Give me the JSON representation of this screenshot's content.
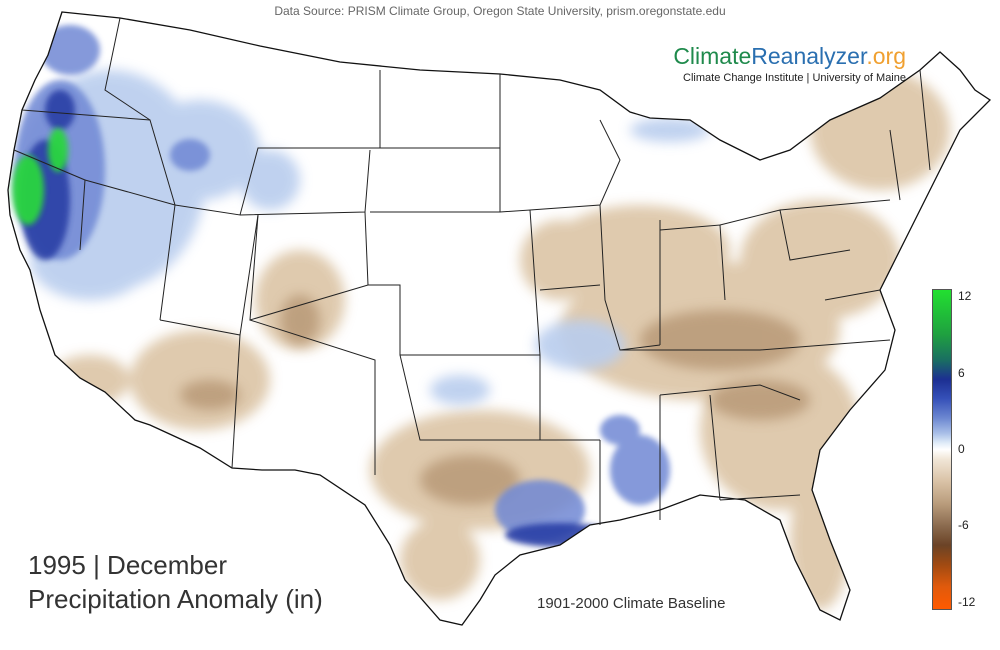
{
  "header": {
    "source": "Data Source: PRISM Climate Group, Oregon State University, prism.oregonstate.edu"
  },
  "brand": {
    "logo_climate": "Climate",
    "logo_reanalyzer": "Reanalyzer",
    "logo_tld": ".org",
    "subtitle": "Climate Change Institute | University of Maine"
  },
  "title": {
    "line1": "1995 | December",
    "line2": "Precipitation Anomaly (in)"
  },
  "baseline": "1901-2000 Climate Baseline",
  "legend": {
    "ticks": [
      "12",
      "6",
      "0",
      "-6",
      "-12"
    ],
    "colors": {
      "high": "#22e030",
      "mid_blue": "#1c2f92",
      "zero": "#ffffff",
      "mid_brown": "#6b4326",
      "low": "#ff5a00"
    }
  },
  "map": {
    "region": "Contiguous United States",
    "wet_color": "#3c5cc0",
    "dry_color": "#d9c2a6",
    "extreme_wet_color": "#22d040"
  }
}
